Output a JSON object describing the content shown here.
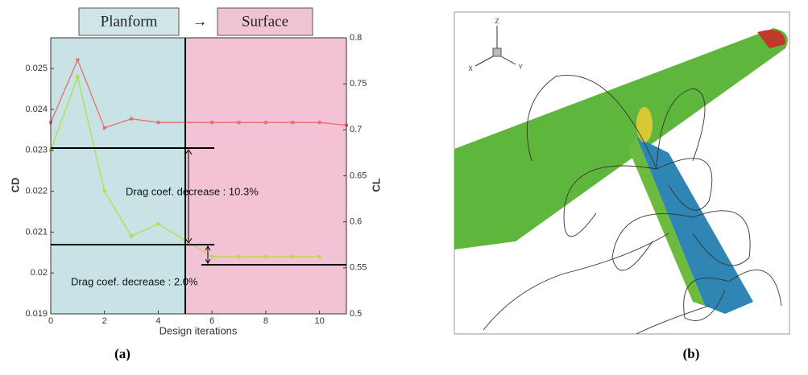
{
  "chart_data": {
    "type": "line",
    "xlabel": "Design iterations",
    "ylabel": "CD",
    "y2label": "CL",
    "phases": [
      "Planform",
      "Surface"
    ],
    "arrow": "→",
    "annotations": [
      "Drag coef. decrease : 10.3%",
      "Drag coef. decrease : 2.0%"
    ],
    "x": [
      0,
      1,
      2,
      3,
      4,
      6,
      7,
      8,
      9,
      10,
      11
    ],
    "xlim": [
      0,
      11
    ],
    "xticks": [
      0,
      2,
      4,
      6,
      8,
      10
    ],
    "ylim": [
      0.019,
      0.02575
    ],
    "yticks": [
      0.019,
      0.02,
      0.021,
      0.022,
      0.023,
      0.024,
      0.025
    ],
    "y2lim": [
      0.5,
      0.8
    ],
    "y2ticks": [
      0.5,
      0.55,
      0.6,
      0.65,
      0.7,
      0.75,
      0.8
    ],
    "series": [
      {
        "name": "CD",
        "color": "#b5dc45",
        "values": [
          0.023,
          0.0248,
          0.022,
          0.0209,
          0.0212,
          0.0204,
          0.0204,
          0.0204,
          0.0204,
          0.0204,
          null
        ]
      },
      {
        "name": "CL",
        "color": "#f06a6a",
        "axis": "y2",
        "values": [
          0.708,
          0.776,
          0.702,
          0.712,
          0.708,
          0.708,
          0.708,
          0.708,
          0.708,
          0.708,
          0.705
        ]
      }
    ]
  },
  "captions": [
    "(a)",
    "(b)"
  ],
  "triad": [
    "Z",
    "X",
    "Y"
  ]
}
